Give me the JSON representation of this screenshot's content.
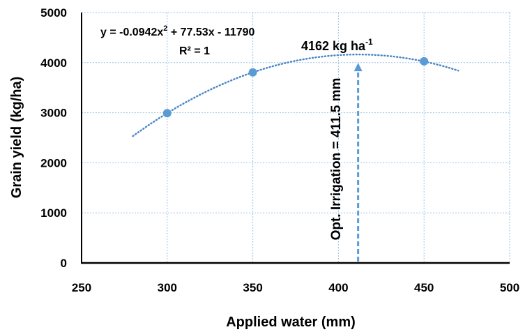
{
  "chart_data": {
    "type": "scatter",
    "title": "",
    "xlabel": "Applied water (mm)",
    "ylabel": "Grain yield (kg/ha)",
    "xlim": [
      250,
      500
    ],
    "ylim": [
      0,
      5000
    ],
    "x_ticks": [
      250,
      300,
      350,
      400,
      450,
      500
    ],
    "y_ticks": [
      0,
      1000,
      2000,
      3000,
      4000,
      5000
    ],
    "grid": "vertical and horizontal dotted gridlines",
    "colors": {
      "points": "#5B9BD5",
      "trendline": "#4A86C6",
      "arrow": "#5B9BD5",
      "grid": "#9DC3E6"
    },
    "points": [
      {
        "x": 300,
        "y": 2991
      },
      {
        "x": 350,
        "y": 3805
      },
      {
        "x": 450,
        "y": 4027
      }
    ],
    "trendline": {
      "type": "polynomial-2",
      "coefficients": {
        "a": -0.0942,
        "b": 77.53,
        "c": -11790
      },
      "x_range": [
        280,
        470
      ],
      "equation_prefix": "y = -0.0942x",
      "equation_sup": "2",
      "equation_suffix": " + 77.53x - 11790",
      "r2_text": "R² = 1"
    },
    "optimum": {
      "x": 411.5,
      "y": 4162,
      "yield_text": "4162 kg ha",
      "yield_sup": "-1",
      "irrigation_text": "Opt. Irrigation = 411.5 mm"
    }
  }
}
